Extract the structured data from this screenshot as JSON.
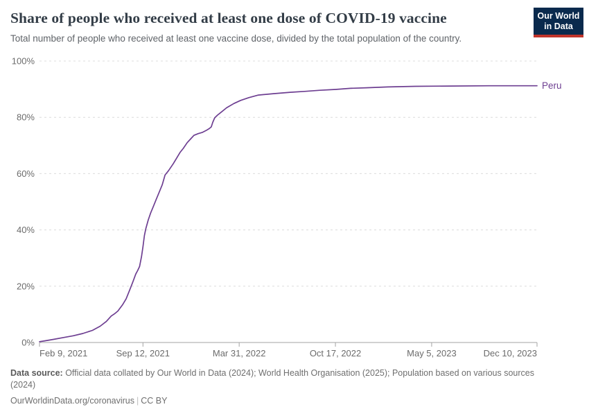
{
  "header": {
    "title": "Share of people who received at least one dose of COVID-19 vaccine",
    "subtitle": "Total number of people who received at least one vaccine dose, divided by the total population of the country."
  },
  "logo": {
    "line1": "Our World",
    "line2": "in Data"
  },
  "chart_data": {
    "type": "line",
    "title": "Share of people who received at least one dose of COVID-19 vaccine",
    "xlabel": "",
    "ylabel": "",
    "x_range": [
      "2021-02-09",
      "2023-12-10"
    ],
    "y_range": [
      0,
      100
    ],
    "grid": "dashed-horizontal",
    "legend": "end-of-line-label",
    "y_ticks": [
      {
        "value": 0,
        "label": "0%"
      },
      {
        "value": 20,
        "label": "20%"
      },
      {
        "value": 40,
        "label": "40%"
      },
      {
        "value": 60,
        "label": "60%"
      },
      {
        "value": 80,
        "label": "80%"
      },
      {
        "value": 100,
        "label": "100%"
      }
    ],
    "x_ticks": [
      {
        "date": "2021-02-09",
        "label": "Feb 9, 2021",
        "anchor": "start"
      },
      {
        "date": "2021-09-12",
        "label": "Sep 12, 2021",
        "anchor": "middle"
      },
      {
        "date": "2022-03-31",
        "label": "Mar 31, 2022",
        "anchor": "middle"
      },
      {
        "date": "2022-10-17",
        "label": "Oct 17, 2022",
        "anchor": "middle"
      },
      {
        "date": "2023-05-05",
        "label": "May 5, 2023",
        "anchor": "middle"
      },
      {
        "date": "2023-12-10",
        "label": "Dec 10, 2023",
        "anchor": "end"
      }
    ],
    "series": [
      {
        "name": "Peru",
        "color": "#6D3E91",
        "points": [
          [
            "2021-02-09",
            0.3
          ],
          [
            "2021-02-20",
            0.6
          ],
          [
            "2021-03-10",
            1.1
          ],
          [
            "2021-04-01",
            1.8
          ],
          [
            "2021-04-20",
            2.4
          ],
          [
            "2021-05-10",
            3.2
          ],
          [
            "2021-05-30",
            4.3
          ],
          [
            "2021-06-15",
            5.8
          ],
          [
            "2021-06-28",
            7.5
          ],
          [
            "2021-07-08",
            9.4
          ],
          [
            "2021-07-15",
            10.2
          ],
          [
            "2021-07-22",
            11.2
          ],
          [
            "2021-08-01",
            13.5
          ],
          [
            "2021-08-08",
            15.5
          ],
          [
            "2021-08-15",
            18.5
          ],
          [
            "2021-08-22",
            21.5
          ],
          [
            "2021-08-28",
            24.3
          ],
          [
            "2021-09-01",
            25.6
          ],
          [
            "2021-09-05",
            27.0
          ],
          [
            "2021-09-09",
            30.5
          ],
          [
            "2021-09-12",
            34.0
          ],
          [
            "2021-09-15",
            38.0
          ],
          [
            "2021-09-18",
            40.5
          ],
          [
            "2021-09-23",
            43.5
          ],
          [
            "2021-09-28",
            46.0
          ],
          [
            "2021-10-04",
            48.5
          ],
          [
            "2021-10-10",
            51.0
          ],
          [
            "2021-10-16",
            53.5
          ],
          [
            "2021-10-22",
            56.0
          ],
          [
            "2021-10-28",
            59.5
          ],
          [
            "2021-11-04",
            61.0
          ],
          [
            "2021-11-14",
            63.5
          ],
          [
            "2021-11-21",
            65.5
          ],
          [
            "2021-11-28",
            67.5
          ],
          [
            "2021-12-05",
            69.0
          ],
          [
            "2021-12-13",
            71.0
          ],
          [
            "2021-12-20",
            72.3
          ],
          [
            "2021-12-27",
            73.6
          ],
          [
            "2022-01-05",
            74.2
          ],
          [
            "2022-01-13",
            74.6
          ],
          [
            "2022-01-21",
            75.3
          ],
          [
            "2022-01-28",
            76.0
          ],
          [
            "2022-02-01",
            76.6
          ],
          [
            "2022-02-04",
            78.2
          ],
          [
            "2022-02-08",
            79.8
          ],
          [
            "2022-02-14",
            80.8
          ],
          [
            "2022-02-20",
            81.6
          ],
          [
            "2022-03-05",
            83.4
          ],
          [
            "2022-03-20",
            84.9
          ],
          [
            "2022-04-03",
            86.0
          ],
          [
            "2022-04-20",
            87.0
          ],
          [
            "2022-05-10",
            87.9
          ],
          [
            "2022-06-10",
            88.4
          ],
          [
            "2022-07-15",
            88.9
          ],
          [
            "2022-08-14",
            89.2
          ],
          [
            "2022-09-15",
            89.6
          ],
          [
            "2022-10-17",
            89.9
          ],
          [
            "2022-11-17",
            90.3
          ],
          [
            "2022-12-20",
            90.5
          ],
          [
            "2023-02-03",
            90.8
          ],
          [
            "2023-04-01",
            91.0
          ],
          [
            "2023-06-13",
            91.1
          ],
          [
            "2023-09-01",
            91.2
          ],
          [
            "2023-12-10",
            91.2
          ]
        ]
      }
    ]
  },
  "footer": {
    "data_source_label": "Data source:",
    "data_source_text": " Official data collated by Our World in Data (2024); World Health Organisation (2025); Population based on various sources (2024)",
    "link_text": "OurWorldinData.org/coronavirus",
    "pipe": "|",
    "license_text": "CC BY"
  },
  "colors": {
    "line": "#6D3E91",
    "grid": "#dcdcdc",
    "axis": "#a3a3a3",
    "tick_label": "#6b6b6b",
    "title": "#333d47",
    "subtitle": "#5f6368",
    "logo_bg": "#0a2a4d",
    "logo_stripe": "#c0342b"
  }
}
